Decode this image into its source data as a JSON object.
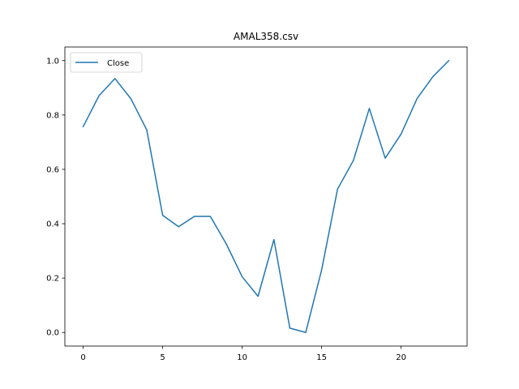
{
  "chart_data": {
    "type": "line",
    "title": "AMAL358.csv",
    "xlabel": "",
    "ylabel": "",
    "x": [
      0,
      1,
      2,
      3,
      4,
      5,
      6,
      7,
      8,
      9,
      10,
      11,
      12,
      13,
      14,
      15,
      16,
      17,
      18,
      19,
      20,
      21,
      22,
      23
    ],
    "series": [
      {
        "name": "Close",
        "color": "#1f77b4",
        "values": [
          0.757,
          0.871,
          0.934,
          0.86,
          0.745,
          0.431,
          0.389,
          0.427,
          0.427,
          0.326,
          0.205,
          0.133,
          0.342,
          0.016,
          0.0,
          0.23,
          0.527,
          0.633,
          0.824,
          0.641,
          0.73,
          0.86,
          0.941,
          1.0
        ]
      }
    ],
    "xlim": [
      -1.15,
      24.15
    ],
    "ylim": [
      -0.05,
      1.05
    ],
    "xticks": [
      0,
      5,
      10,
      15,
      20
    ],
    "xtick_labels": [
      "0",
      "5",
      "10",
      "15",
      "20"
    ],
    "yticks": [
      0.0,
      0.2,
      0.4,
      0.6,
      0.8,
      1.0
    ],
    "ytick_labels": [
      "0.0",
      "0.2",
      "0.4",
      "0.6",
      "0.8",
      "1.0"
    ],
    "grid": false,
    "legend_position": "upper-left"
  }
}
